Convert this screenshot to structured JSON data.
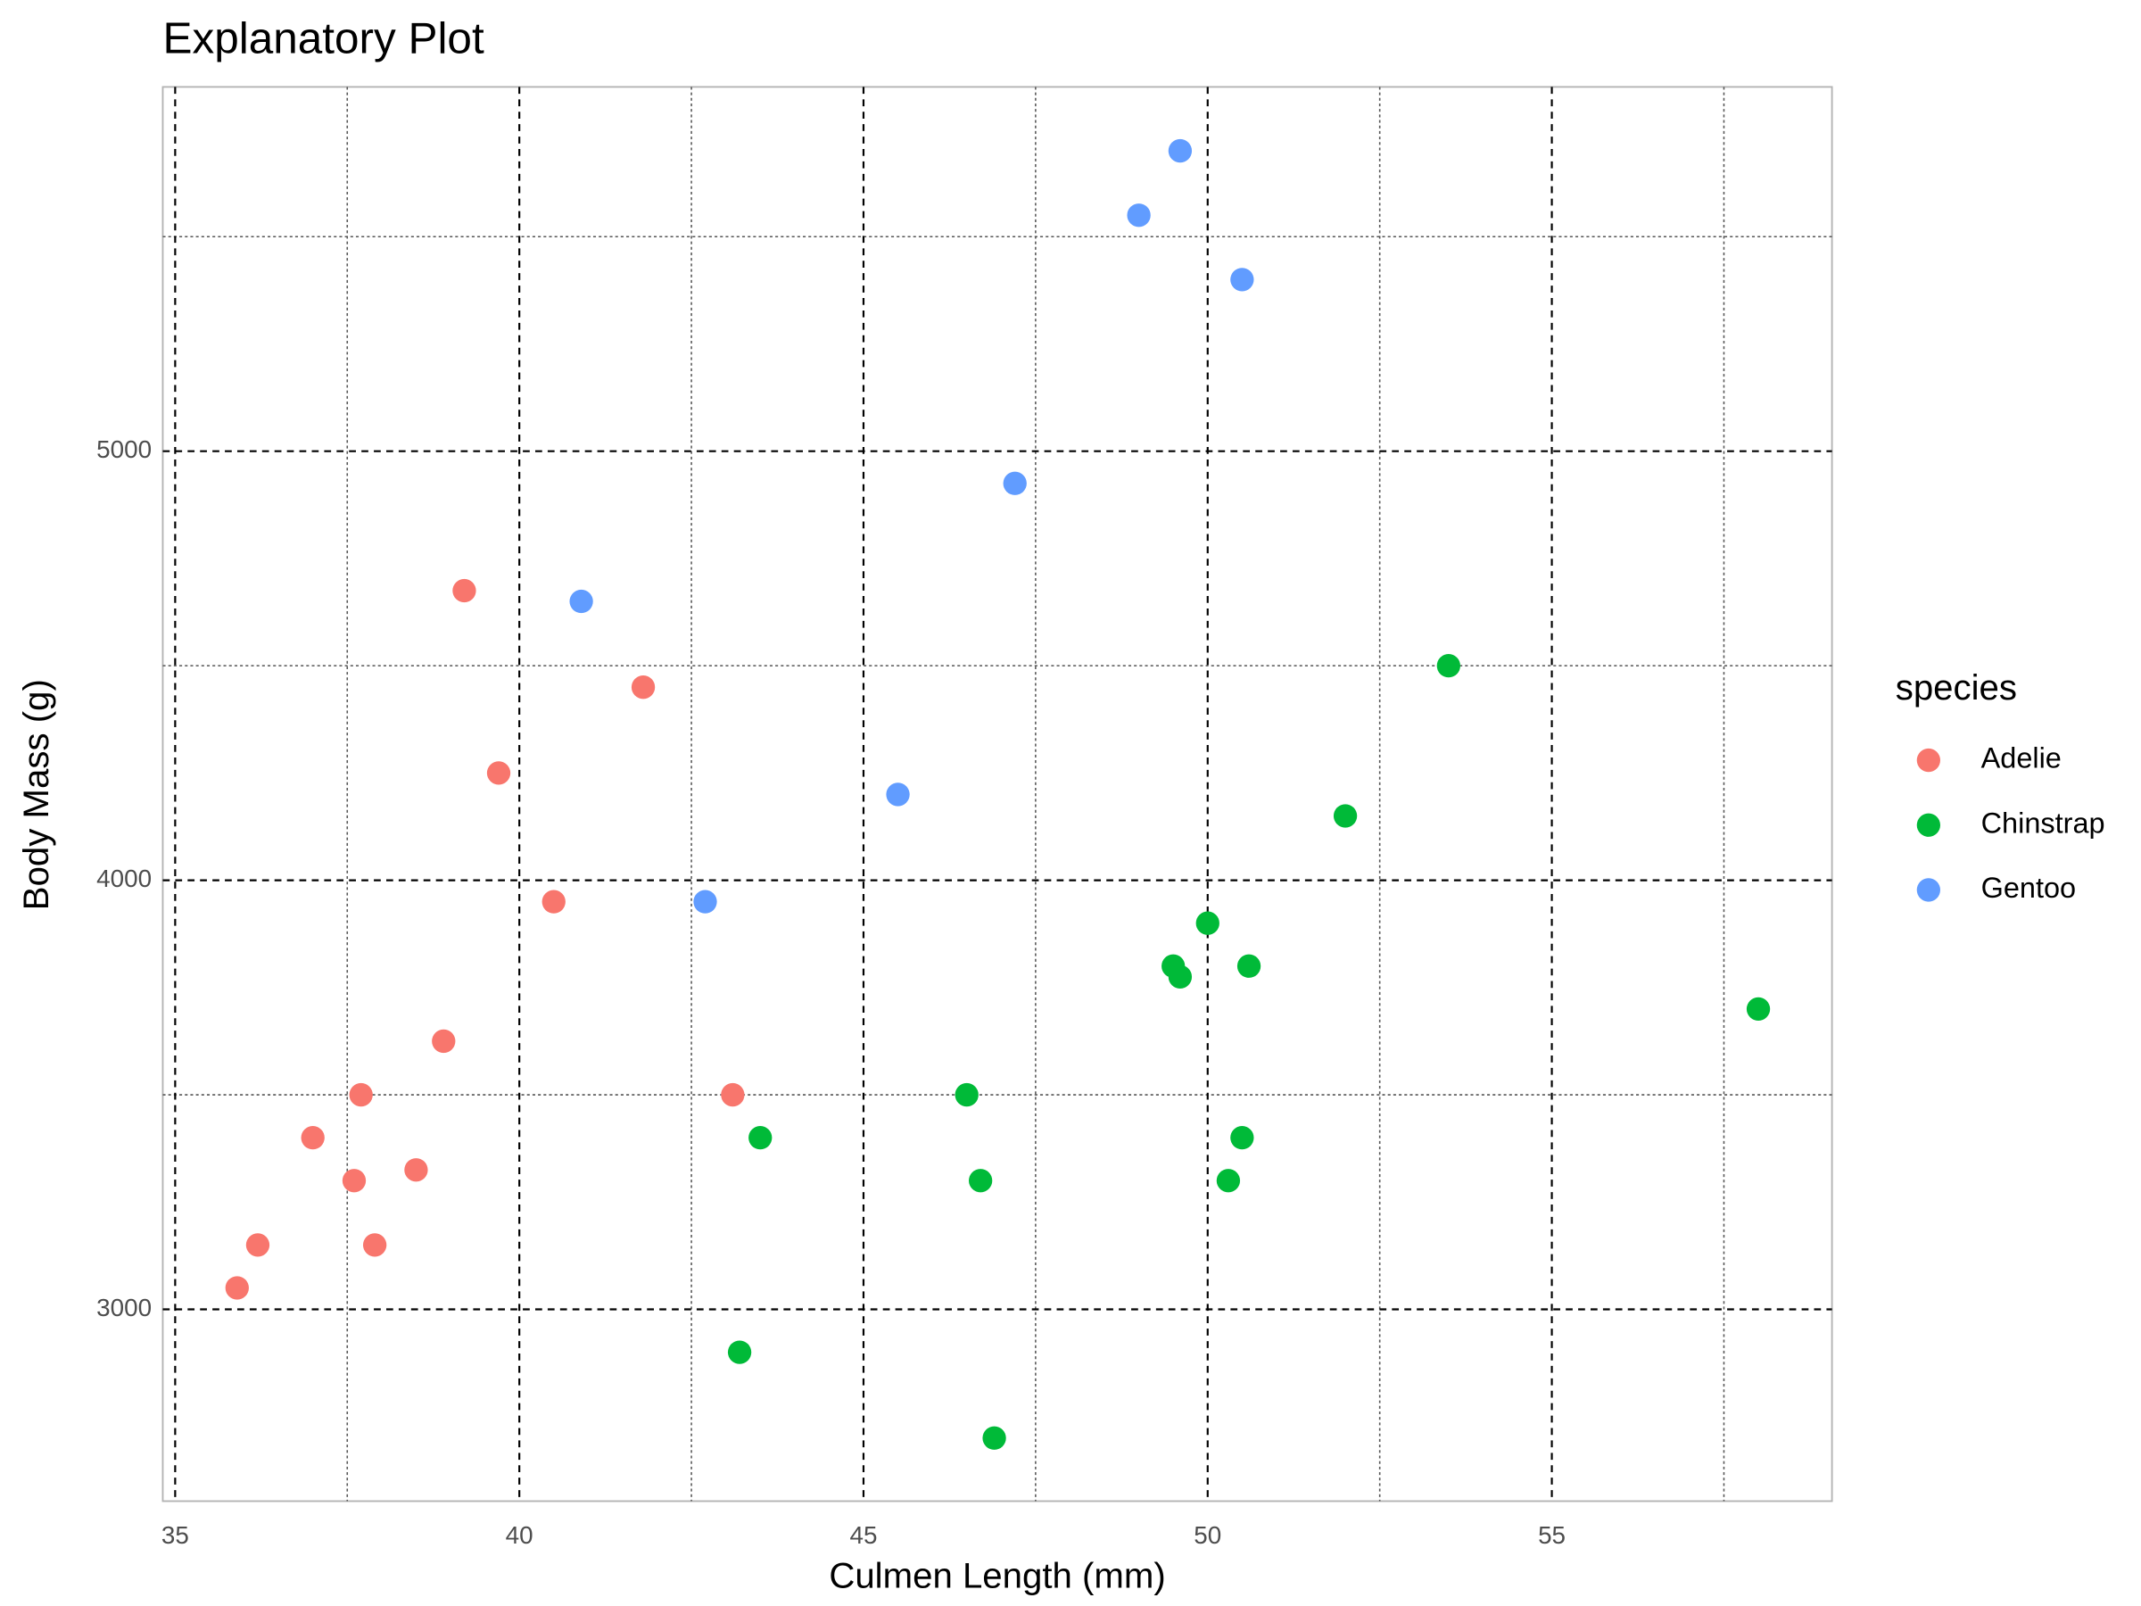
{
  "chart_data": {
    "type": "scatter",
    "title": "Explanatory Plot",
    "x_label": "Culmen Length (mm)",
    "y_label": "Body Mass (g)",
    "legend_title": "species",
    "xlim": [
      34.82,
      59.07
    ],
    "ylim": [
      2553,
      5849
    ],
    "xticks": [
      35,
      40,
      45,
      50,
      55
    ],
    "yticks": [
      3000,
      4000,
      5000
    ],
    "x_minor_ticks": [
      37.5,
      42.5,
      47.5,
      52.5,
      57.5
    ],
    "y_minor_ticks": [
      3500,
      4500,
      5500
    ],
    "grid": true,
    "legend": "right",
    "series": [
      {
        "name": "Adelie",
        "color": "#F8766D",
        "x": [
          39.2,
          41.8,
          39.7,
          40.5,
          38.9,
          37.7,
          37.0,
          43.1,
          37.6,
          38.5,
          36.2,
          37.9,
          35.9
        ],
        "values": [
          4675,
          4450,
          4250,
          3950,
          3625,
          3500,
          3400,
          3500,
          3300,
          3325,
          3150,
          3150,
          3050
        ]
      },
      {
        "name": "Chinstrap",
        "color": "#00BA38",
        "x": [
          53.5,
          52.0,
          50.0,
          49.5,
          49.6,
          50.6,
          58.0,
          46.5,
          43.5,
          50.5,
          46.7,
          50.3,
          43.2,
          46.9
        ],
        "values": [
          4500,
          4150,
          3900,
          3800,
          3775,
          3800,
          3700,
          3500,
          3400,
          3400,
          3300,
          3300,
          2900,
          2700
        ]
      },
      {
        "name": "Gentoo",
        "color": "#619CFF",
        "x": [
          49.6,
          49.0,
          50.5,
          47.2,
          40.9,
          45.5,
          42.7
        ],
        "values": [
          5700,
          5550,
          5400,
          4925,
          4650,
          4200,
          3950
        ]
      }
    ]
  }
}
